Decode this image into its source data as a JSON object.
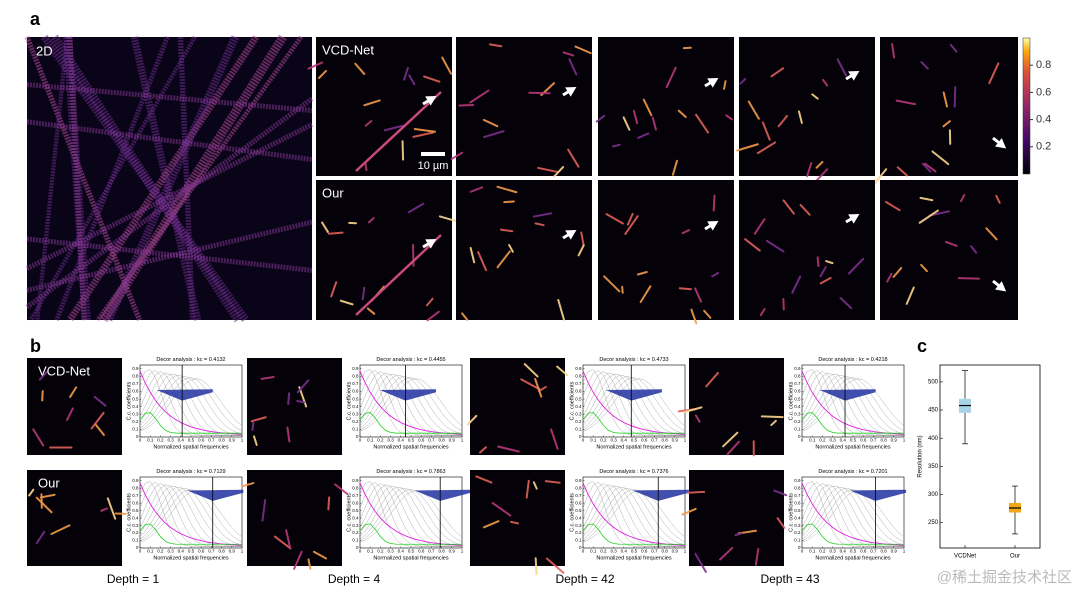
{
  "panels": {
    "a": {
      "label": "a",
      "image_2d": "2D",
      "rows": [
        "VCD-Net",
        "Our"
      ],
      "scale_bar": "10 µm",
      "colorbar": {
        "clim": [
          0,
          1
        ],
        "ticks": [
          0.2,
          0.4,
          0.6,
          0.8
        ]
      }
    },
    "b": {
      "label": "b",
      "rows": [
        "VCD-Net",
        "Our"
      ],
      "depths": [
        "Depth = 1",
        "Depth = 4",
        "Depth = 42",
        "Depth = 43"
      ],
      "decor": {
        "title": "Decor analysis : kc =",
        "kc": [
          [
            0.4132,
            0.4455,
            0.4733,
            0.4218
          ],
          [
            0.7129,
            0.7863,
            0.7376,
            0.7201
          ]
        ],
        "xlabel": "Normalized spatial frequencies",
        "ylabel": "C.c. coefficients",
        "xticks": [
          0,
          0.1,
          0.2,
          0.3,
          0.4,
          0.5,
          0.6,
          0.7,
          0.8,
          0.9,
          1
        ],
        "yticks": [
          0,
          0.1,
          0.2,
          0.3,
          0.4,
          0.5,
          0.6,
          0.7,
          0.8,
          0.9
        ]
      }
    },
    "c": {
      "label": "c"
    }
  },
  "chart_data": {
    "type": "box",
    "ylabel": "Resolution (nm)",
    "categories": [
      "VCDNet",
      "Our"
    ],
    "ylim": [
      205,
      530
    ],
    "yticks": [
      250,
      300,
      350,
      400,
      450,
      500
    ],
    "series": [
      {
        "color": "#a8d4e6",
        "min": 390,
        "q1": 445,
        "median": 458,
        "q3": 470,
        "max": 520
      },
      {
        "color": "#f0a818",
        "min": 230,
        "q1": 268,
        "median": 276,
        "q3": 285,
        "max": 315
      }
    ]
  },
  "watermark": "@稀土掘金技术社区"
}
